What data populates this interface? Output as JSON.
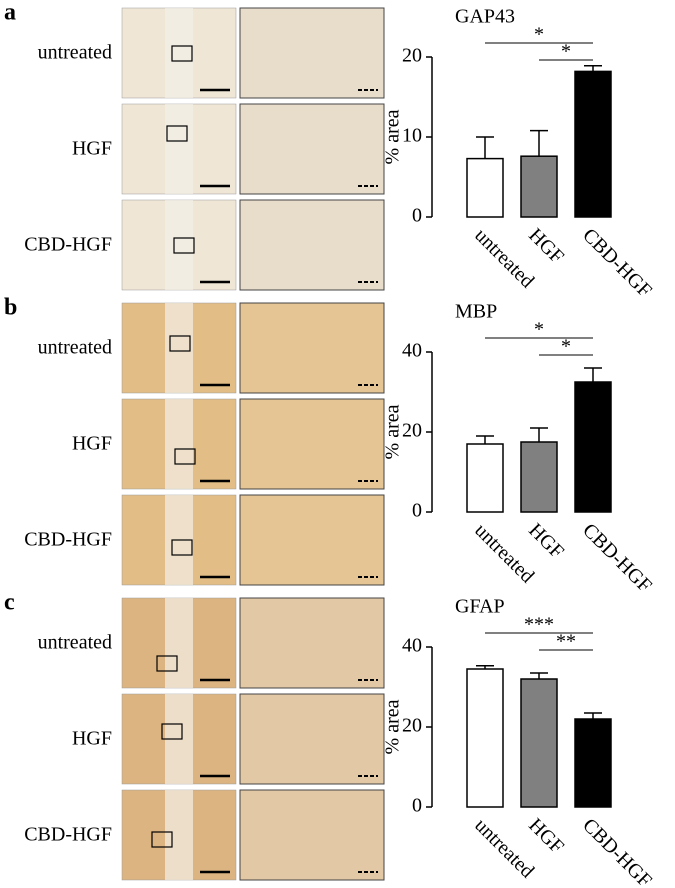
{
  "panels": [
    {
      "label": "a",
      "rows": [
        "untreated",
        "HGF",
        "CBD-HGF"
      ]
    },
    {
      "label": "b",
      "rows": [
        "untreated",
        "HGF",
        "CBD-HGF"
      ]
    },
    {
      "label": "c",
      "rows": [
        "untreated",
        "HGF",
        "CBD-HGF"
      ]
    }
  ],
  "chart_data": [
    {
      "type": "bar",
      "title": "GAP43",
      "y_label": "% area",
      "categories": [
        "untreated",
        "HGF",
        "CBD-HGF"
      ],
      "values": [
        7.3,
        7.6,
        18.2
      ],
      "errors": [
        2.7,
        3.2,
        0.7
      ],
      "colors": [
        "#ffffff",
        "#808080",
        "#000000"
      ],
      "ylim": [
        0,
        20
      ],
      "yticks": [
        0,
        10,
        20
      ],
      "annotations": [
        {
          "from": 0,
          "to": 2,
          "label": "*"
        },
        {
          "from": 1,
          "to": 2,
          "label": "*"
        }
      ]
    },
    {
      "type": "bar",
      "title": "MBP",
      "y_label": "% area",
      "categories": [
        "untreated",
        "HGF",
        "CBD-HGF"
      ],
      "values": [
        17,
        17.5,
        32.5
      ],
      "errors": [
        2,
        3.5,
        3.5
      ],
      "colors": [
        "#ffffff",
        "#808080",
        "#000000"
      ],
      "ylim": [
        0,
        40
      ],
      "yticks": [
        0,
        20,
        40
      ],
      "annotations": [
        {
          "from": 0,
          "to": 2,
          "label": "*"
        },
        {
          "from": 1,
          "to": 2,
          "label": "*"
        }
      ]
    },
    {
      "type": "bar",
      "title": "GFAP",
      "y_label": "% area",
      "categories": [
        "untreated",
        "HGF",
        "CBD-HGF"
      ],
      "values": [
        34.5,
        32,
        22
      ],
      "errors": [
        0.8,
        1.5,
        1.5
      ],
      "colors": [
        "#ffffff",
        "#808080",
        "#000000"
      ],
      "ylim": [
        0,
        40
      ],
      "yticks": [
        0,
        20,
        40
      ],
      "annotations": [
        {
          "from": 0,
          "to": 2,
          "label": "***"
        },
        {
          "from": 1,
          "to": 2,
          "label": "**"
        }
      ]
    }
  ]
}
